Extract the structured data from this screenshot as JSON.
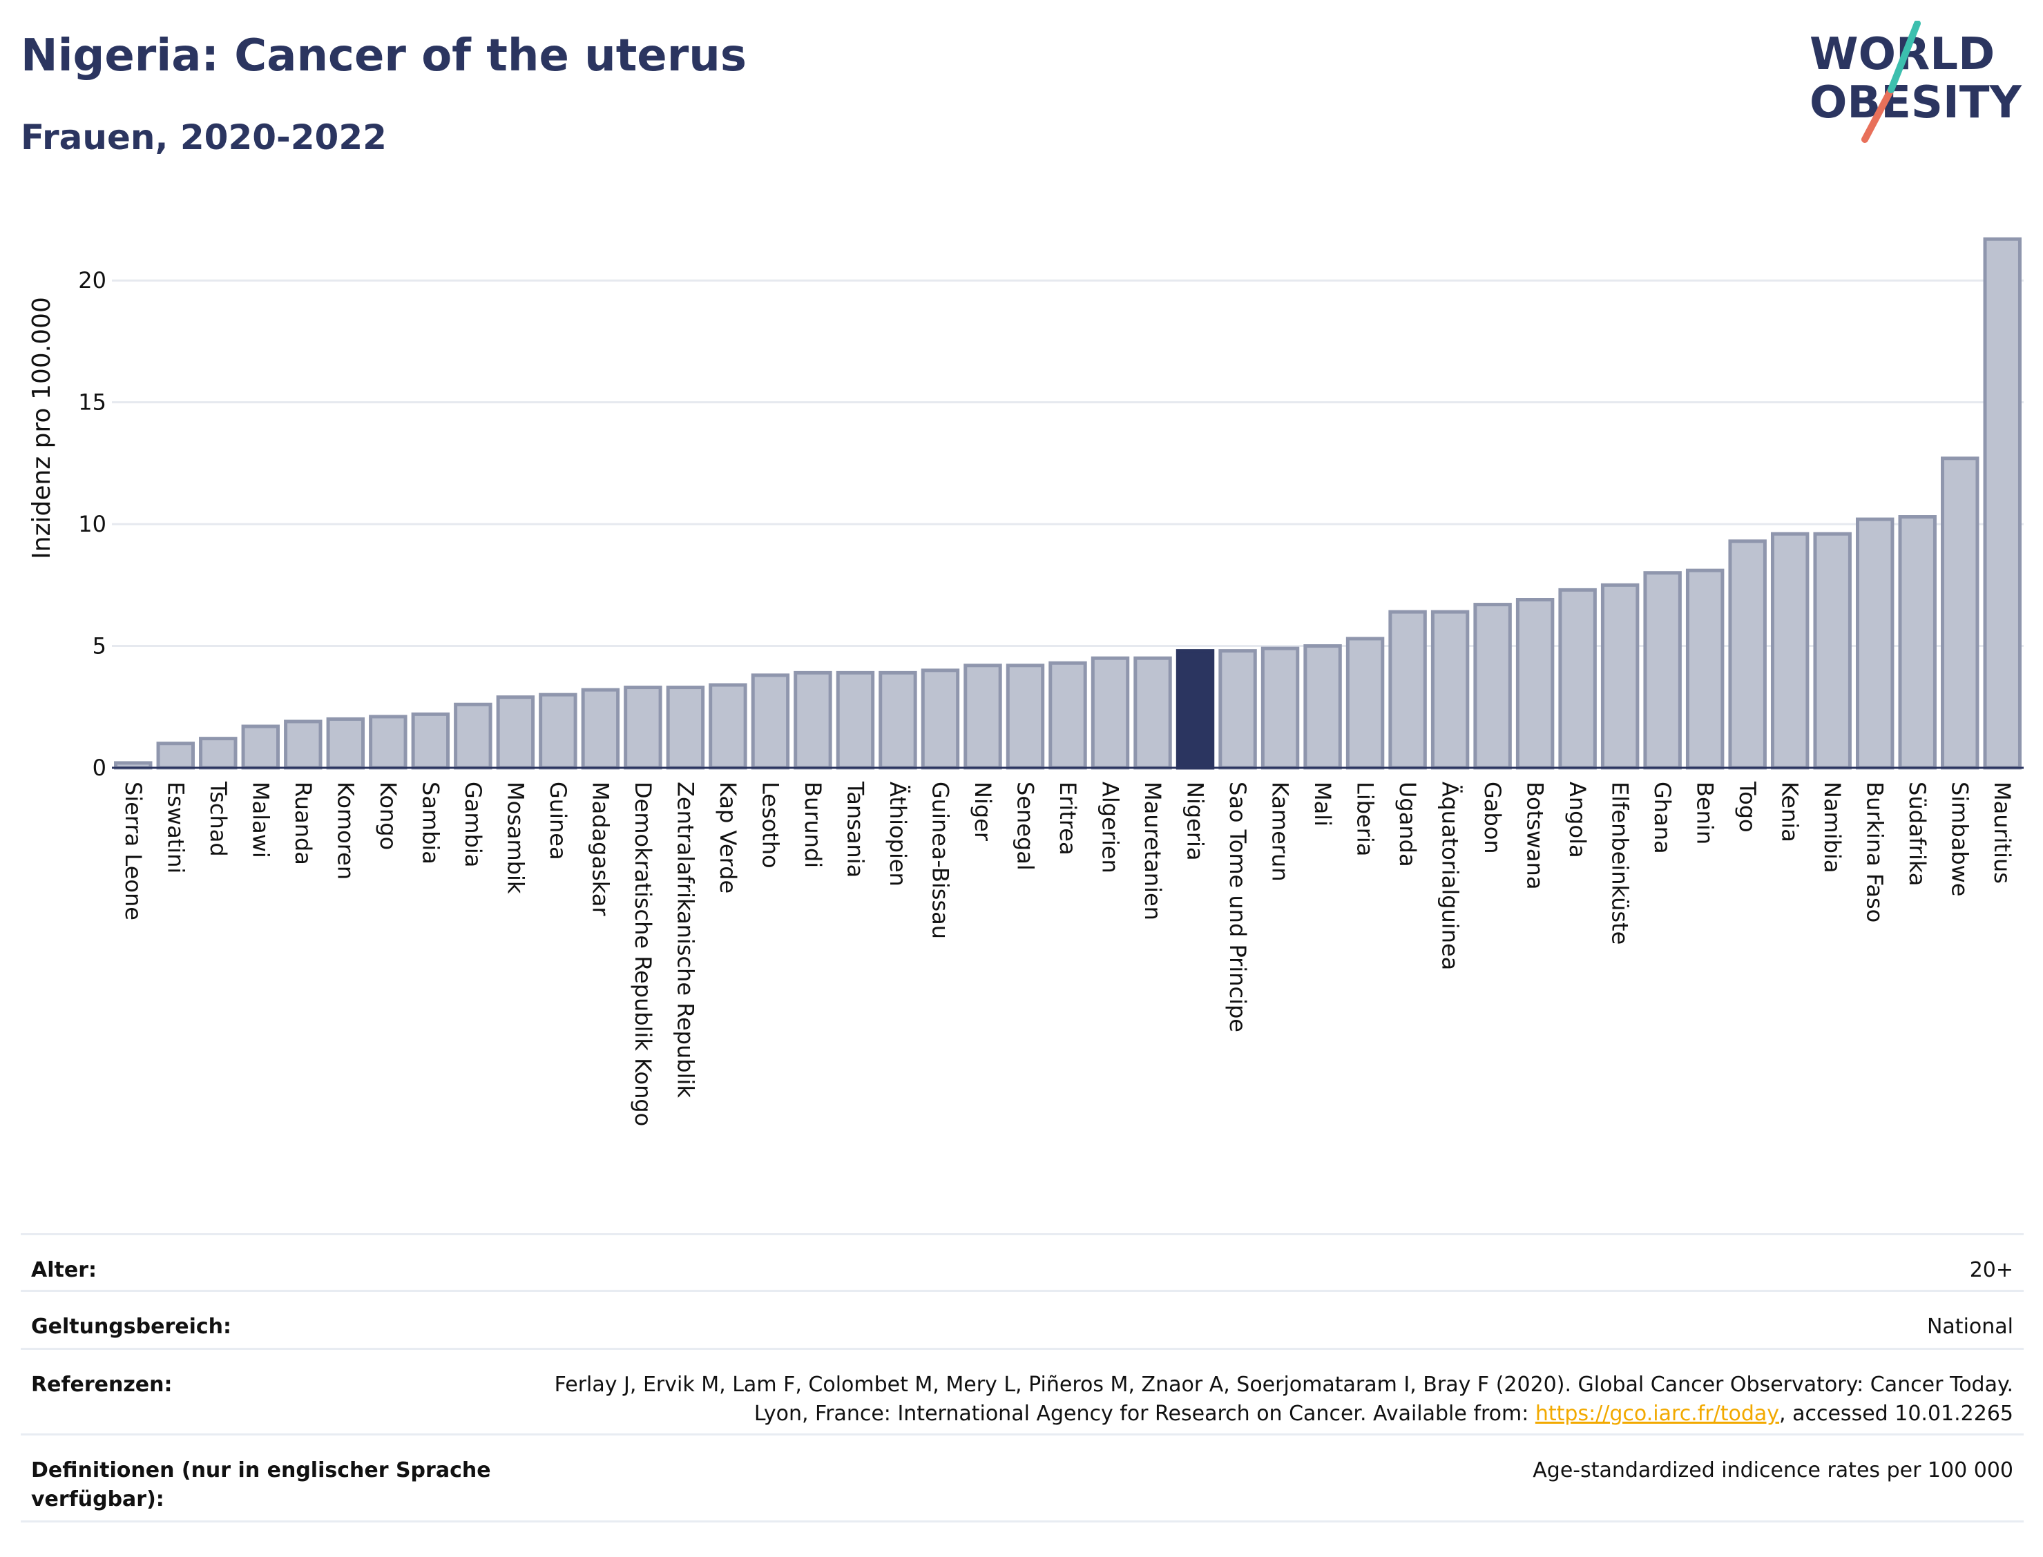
{
  "header": {
    "title": "Nigeria: Cancer of the uterus",
    "subtitle": "Frauen, 2020-2022"
  },
  "logo": {
    "line1": "WORLD",
    "line2": "OBESITY",
    "name": "world-obesity-logo"
  },
  "colors": {
    "bar": "#bdc2d0",
    "bar_border": "#8f96ad",
    "highlight": "#2b3560",
    "grid": "#e6e9ef",
    "axis": "#2b3560"
  },
  "chart_data": {
    "type": "bar",
    "ylabel": "Inzidenz pro 100.000",
    "ylim": [
      0,
      22.5
    ],
    "yticks": [
      0,
      5,
      10,
      15,
      20
    ],
    "grid": true,
    "highlight": "Nigeria",
    "categories": [
      "Sierra Leone",
      "Eswatini",
      "Tschad",
      "Malawi",
      "Ruanda",
      "Komoren",
      "Kongo",
      "Sambia",
      "Gambia",
      "Mosambik",
      "Guinea",
      "Madagaskar",
      "Demokratische Republik Kongo",
      "Zentralafrikanische Republik",
      "Kap Verde",
      "Lesotho",
      "Burundi",
      "Tansania",
      "Äthiopien",
      "Guinea-Bissau",
      "Niger",
      "Senegal",
      "Eritrea",
      "Algerien",
      "Mauretanien",
      "Nigeria",
      "Sao Tome und Principe",
      "Kamerun",
      "Mali",
      "Liberia",
      "Uganda",
      "Äquatorialguinea",
      "Gabon",
      "Botswana",
      "Angola",
      "Elfenbeinküste",
      "Ghana",
      "Benin",
      "Togo",
      "Kenia",
      "Namibia",
      "Burkina Faso",
      "Südafrika",
      "Simbabwe",
      "Mauritius"
    ],
    "values": [
      0.2,
      1.0,
      1.2,
      1.7,
      1.9,
      2.0,
      2.1,
      2.2,
      2.6,
      2.9,
      3.0,
      3.2,
      3.3,
      3.3,
      3.4,
      3.8,
      3.9,
      3.9,
      3.9,
      4.0,
      4.2,
      4.2,
      4.3,
      4.5,
      4.5,
      4.8,
      4.8,
      4.9,
      5.0,
      5.3,
      6.4,
      6.4,
      6.7,
      6.9,
      7.3,
      7.5,
      8.0,
      8.1,
      9.3,
      9.6,
      9.6,
      10.2,
      10.3,
      12.7,
      21.7
    ]
  },
  "meta": [
    {
      "key": "Alter:",
      "value": "20+"
    },
    {
      "key": "Geltungsbereich:",
      "value": "National"
    },
    {
      "key": "Referenzen:",
      "value": "Ferlay J, Ervik M, Lam F, Colombet M, Mery L, Piñeros M, Znaor A, Soerjomataram I, Bray F (2020). Global Cancer Observatory: Cancer Today. Lyon, France: International Agency for Research on Cancer. Available from:",
      "link": "https://gco.iarc.fr/today",
      "suffix": ", accessed 10.01.2265"
    },
    {
      "key": "Definitionen (nur in englischer Sprache verfügbar):",
      "value": "Age-standardized indicence rates per 100 000"
    }
  ]
}
